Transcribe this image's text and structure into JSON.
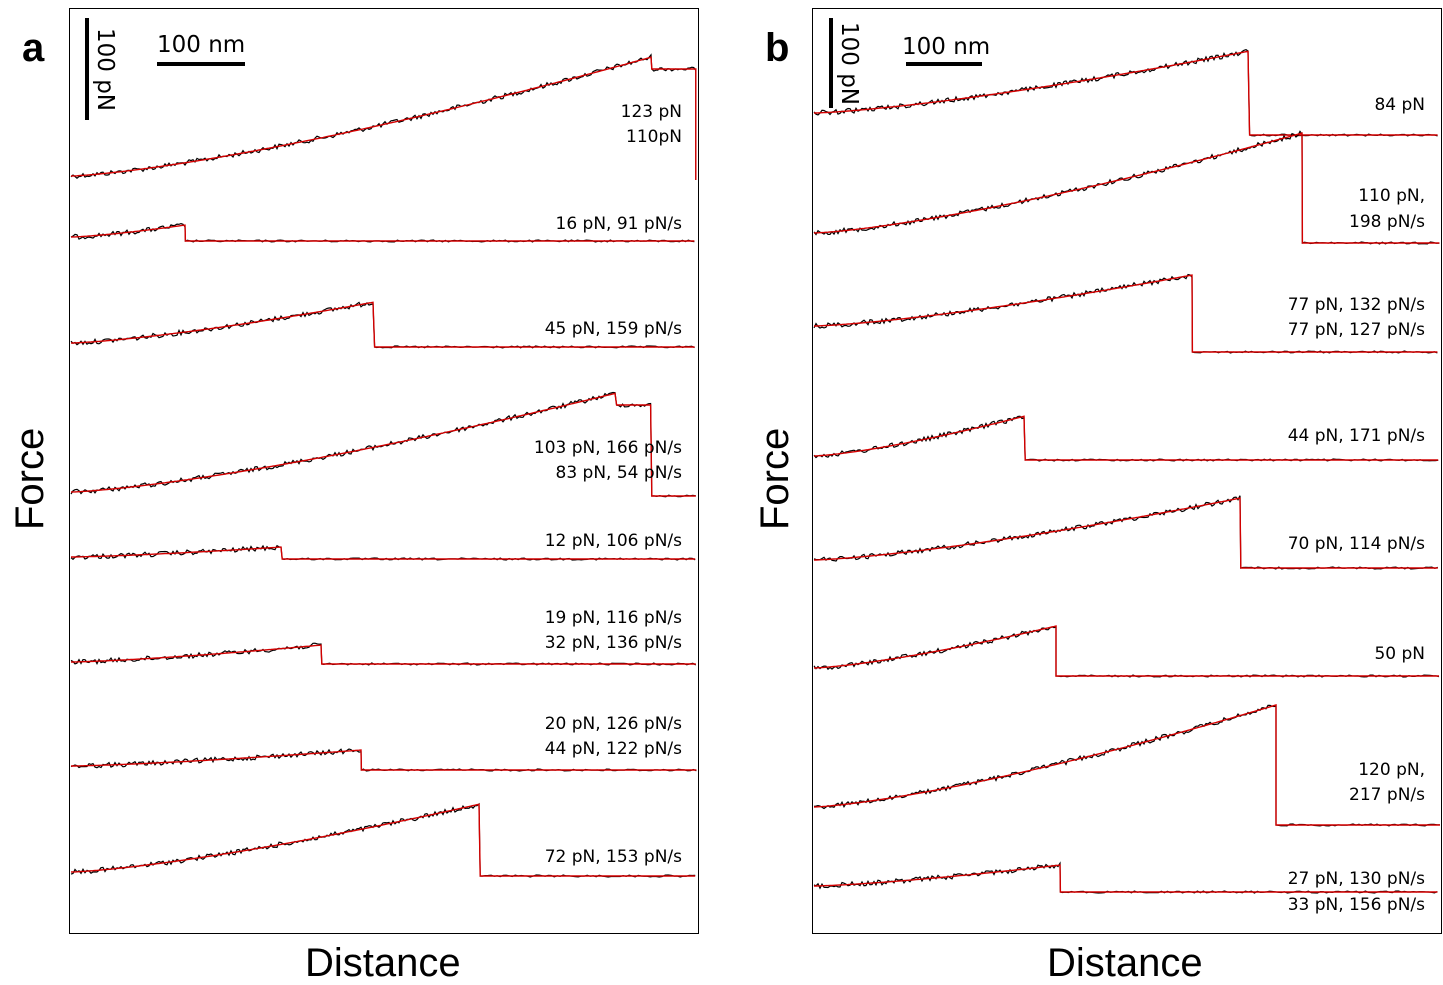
{
  "chart_data": [
    {
      "type": "line",
      "panel": "a",
      "xlabel": "Distance",
      "ylabel": "Force",
      "scale_bars": {
        "x": "100 nm",
        "y": "100 pN"
      },
      "grid": false,
      "series_colors": {
        "raw": "#000000",
        "fit": "#d40000"
      },
      "traces": [
        {
          "rupture_x_nm": 660,
          "end_x_nm": 710,
          "peak_force_pN": 123,
          "labels": [
            "123 pN",
            "110pN"
          ]
        },
        {
          "rupture_x_nm": 130,
          "peak_force_pN": 16,
          "labels": [
            "16 pN, 91 pN/s"
          ]
        },
        {
          "rupture_x_nm": 345,
          "peak_force_pN": 45,
          "labels": [
            "45 pN, 159 pN/s"
          ]
        },
        {
          "rupture_x_nm": 620,
          "end_x_nm": 660,
          "peak_force_pN": 103,
          "labels": [
            "103 pN, 166 pN/s",
            "83 pN, 54 pN/s"
          ]
        },
        {
          "rupture_x_nm": 240,
          "peak_force_pN": 12,
          "labels": [
            "12 pN, 106 pN/s"
          ]
        },
        {
          "rupture_x_nm": 285,
          "peak_force_pN": 19,
          "labels": [
            "19 pN, 116 pN/s",
            "32 pN, 136 pN/s"
          ]
        },
        {
          "rupture_x_nm": 330,
          "peak_force_pN": 20,
          "labels": [
            "20 pN, 126 pN/s",
            "44 pN, 122 pN/s"
          ]
        },
        {
          "rupture_x_nm": 465,
          "peak_force_pN": 72,
          "labels": [
            "72 pN, 153 pN/s"
          ]
        }
      ]
    },
    {
      "type": "line",
      "panel": "b",
      "xlabel": "Distance",
      "ylabel": "Force",
      "scale_bars": {
        "x": "100 nm",
        "y": "100 pN"
      },
      "grid": false,
      "series_colors": {
        "raw": "#000000",
        "fit": "#d40000"
      },
      "traces": [
        {
          "rupture_x_nm": 495,
          "peak_force_pN": 84,
          "labels": [
            "84 pN"
          ]
        },
        {
          "rupture_x_nm": 555,
          "peak_force_pN": 110,
          "labels": [
            "110 pN,",
            "198 pN/s"
          ]
        },
        {
          "rupture_x_nm": 430,
          "peak_force_pN": 77,
          "labels": [
            "77 pN, 132 pN/s",
            "77 pN, 127 pN/s"
          ]
        },
        {
          "rupture_x_nm": 240,
          "peak_force_pN": 44,
          "labels": [
            "44 pN, 171 pN/s"
          ]
        },
        {
          "rupture_x_nm": 485,
          "peak_force_pN": 70,
          "labels": [
            "70 pN, 114 pN/s"
          ]
        },
        {
          "rupture_x_nm": 275,
          "peak_force_pN": 50,
          "labels": [
            "50 pN"
          ]
        },
        {
          "rupture_x_nm": 525,
          "peak_force_pN": 120,
          "labels": [
            "120 pN,",
            "217 pN/s"
          ]
        },
        {
          "rupture_x_nm": 280,
          "peak_force_pN": 27,
          "labels": [
            "27 pN, 130 pN/s",
            "33 pN, 156 pN/s"
          ]
        }
      ]
    }
  ]
}
